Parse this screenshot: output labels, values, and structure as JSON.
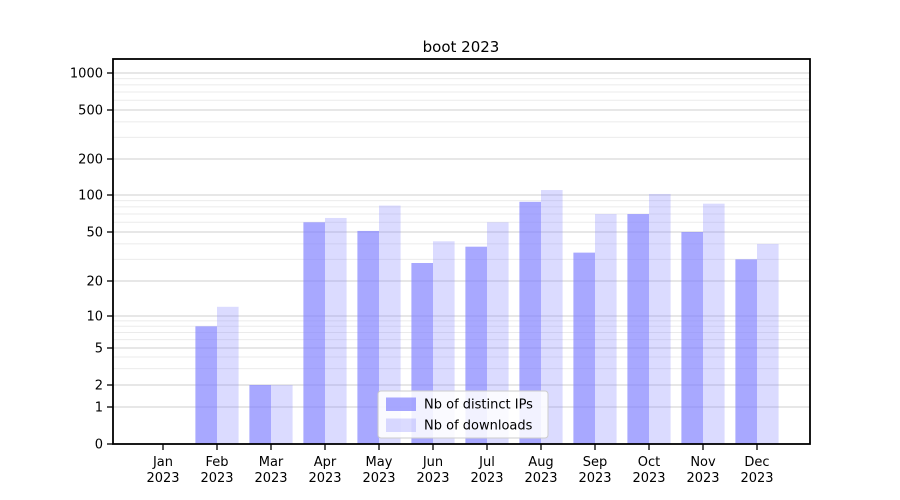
{
  "chart_data": {
    "type": "bar",
    "title": "boot 2023",
    "year": "2023",
    "categories": [
      "Jan",
      "Feb",
      "Mar",
      "Apr",
      "May",
      "Jun",
      "Jul",
      "Aug",
      "Sep",
      "Oct",
      "Nov",
      "Dec"
    ],
    "series": [
      {
        "name": "Nb of distinct IPs",
        "key": "distinct-ips",
        "color": "rgba(127,127,255,0.68)",
        "values": [
          0,
          8,
          2,
          60,
          51,
          28,
          38,
          88,
          34,
          70,
          50,
          30
        ]
      },
      {
        "name": "Nb of downloads",
        "key": "downloads",
        "color": "rgba(127,127,255,0.28)",
        "values": [
          0,
          12,
          2,
          65,
          82,
          42,
          60,
          110,
          70,
          102,
          85,
          40
        ]
      }
    ],
    "yscale": "symlog",
    "yticks": [
      0,
      1,
      2,
      5,
      10,
      20,
      50,
      100,
      200,
      500,
      1000
    ],
    "yminorticks": [
      3,
      4,
      6,
      7,
      8,
      9,
      30,
      40,
      60,
      70,
      80,
      90,
      300,
      400,
      600,
      700,
      800,
      900
    ],
    "ylim": [
      0,
      1400
    ],
    "xlabel": "",
    "ylabel": "",
    "grid": true,
    "legend_position": "lower center",
    "colors": {
      "major_grid": "#cfcfcf",
      "minor_grid": "#ebebeb",
      "spine": "#000000",
      "legend_border": "#cccccc",
      "legend_bg": "rgba(255,255,255,0.85)"
    }
  }
}
